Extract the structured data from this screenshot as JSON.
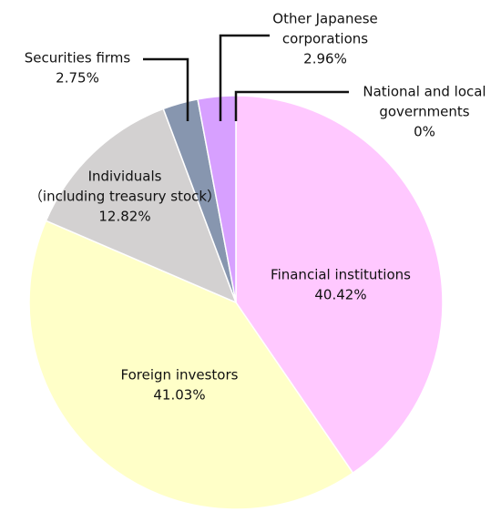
{
  "chart_data": {
    "type": "pie",
    "start_angle_deg": 0,
    "direction": "clockwise",
    "slices": [
      {
        "label_lines": [
          "Financial institutions"
        ],
        "value": 40.42,
        "value_label": "40.42%",
        "color": "#FFC8FF"
      },
      {
        "label_lines": [
          "Foreign investors"
        ],
        "value": 41.03,
        "value_label": "41.03%",
        "color": "#FFFFC8"
      },
      {
        "label_lines": [
          "Individuals",
          "（including treasury stock）"
        ],
        "value": 12.82,
        "value_label": "12.82%",
        "color": "#D3D1D1"
      },
      {
        "label_lines": [
          "Securities firms"
        ],
        "value": 2.75,
        "value_label": "2.75%",
        "color": "#8796AF"
      },
      {
        "label_lines": [
          "Other Japanese",
          "corporations"
        ],
        "value": 2.96,
        "value_label": "2.96%",
        "color": "#D7A0FF"
      },
      {
        "label_lines": [
          "National and local",
          "governments"
        ],
        "value": 0,
        "value_label": "0%",
        "color": "#B4B4B4"
      }
    ]
  }
}
